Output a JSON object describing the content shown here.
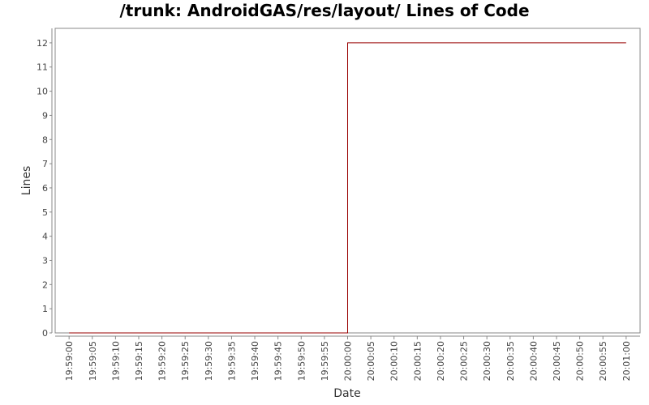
{
  "chart_data": {
    "type": "line",
    "step": true,
    "title": "/trunk: AndroidGAS/res/layout/ Lines of Code",
    "xlabel": "Date",
    "ylabel": "Lines",
    "x_ticks": [
      "19:59:00",
      "19:59:05",
      "19:59:10",
      "19:59:15",
      "19:59:20",
      "19:59:25",
      "19:59:30",
      "19:59:35",
      "19:59:40",
      "19:59:45",
      "19:59:50",
      "19:59:55",
      "20:00:00",
      "20:00:05",
      "20:00:10",
      "20:00:15",
      "20:00:20",
      "20:00:25",
      "20:00:30",
      "20:00:35",
      "20:00:40",
      "20:00:45",
      "20:00:50",
      "20:00:55",
      "20:01:00"
    ],
    "xlim": [
      "19:58:57",
      "20:01:03"
    ],
    "ylim": [
      0,
      12.6
    ],
    "y_ticks": [
      0,
      1,
      2,
      3,
      4,
      5,
      6,
      7,
      8,
      9,
      10,
      11,
      12
    ],
    "grid": false,
    "series": [
      {
        "color": "#990000",
        "points": [
          {
            "x": "19:59:00",
            "y": 0
          },
          {
            "x": "20:00:00",
            "y": 0
          },
          {
            "x": "20:00:00",
            "y": 12
          },
          {
            "x": "20:01:00",
            "y": 12
          }
        ]
      }
    ]
  }
}
